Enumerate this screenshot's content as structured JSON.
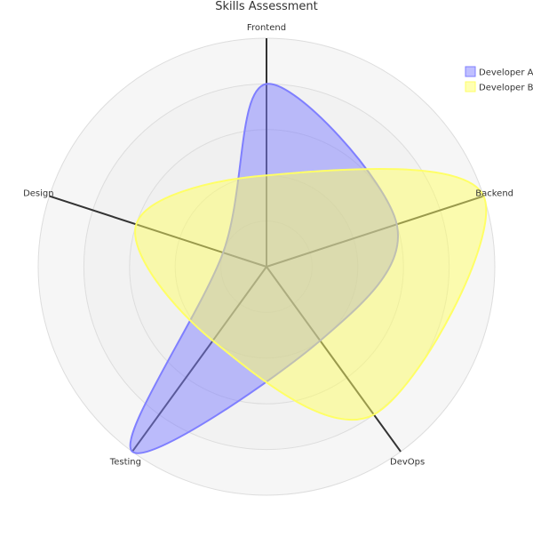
{
  "chart_data": {
    "type": "radar",
    "title": "Skills Assessment",
    "axes": [
      "Frontend",
      "Backend",
      "DevOps",
      "Testing",
      "Design"
    ],
    "range": [
      0,
      5
    ],
    "rings": 5,
    "grid": true,
    "curved": true,
    "legend_position": "top-right",
    "series": [
      {
        "name": "Developer A",
        "values": [
          4,
          3,
          2,
          5,
          1
        ],
        "color": "#7f7fff"
      },
      {
        "name": "Developer B",
        "values": [
          2,
          5,
          4,
          2,
          3
        ],
        "color": "#ffff66"
      }
    ]
  },
  "colors": {
    "ring_fill": "#eeeeee",
    "ring_stroke": "#dddddd",
    "axis": "#333333"
  }
}
